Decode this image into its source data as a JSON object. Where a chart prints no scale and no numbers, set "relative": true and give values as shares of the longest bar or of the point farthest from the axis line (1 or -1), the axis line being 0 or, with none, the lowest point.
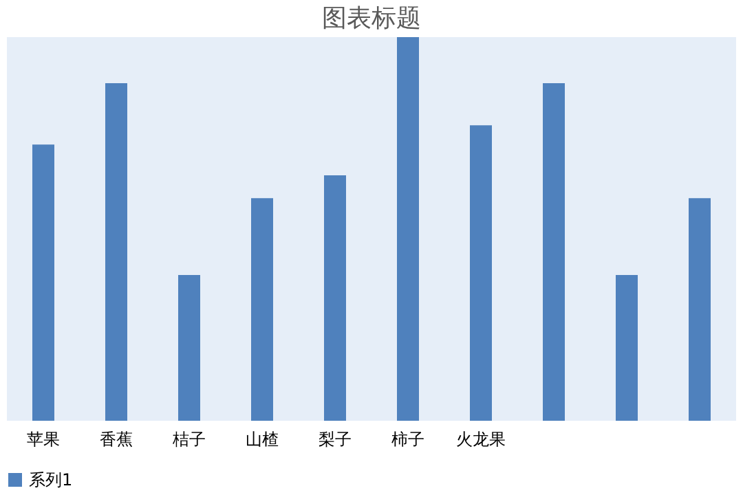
{
  "chart_data": {
    "type": "bar",
    "title": "图表标题",
    "relative": true,
    "categories": [
      "苹果",
      "香蕉",
      "桔子",
      "山楂",
      "梨子",
      "柿子",
      "火龙果",
      null,
      null,
      null
    ],
    "series": [
      {
        "name": "系列1",
        "color": "#4f81bd",
        "values": [
          0.72,
          0.88,
          0.38,
          0.58,
          0.64,
          1,
          0.77,
          0.88,
          0.38,
          0.58
        ]
      }
    ],
    "legend": "bottom"
  }
}
